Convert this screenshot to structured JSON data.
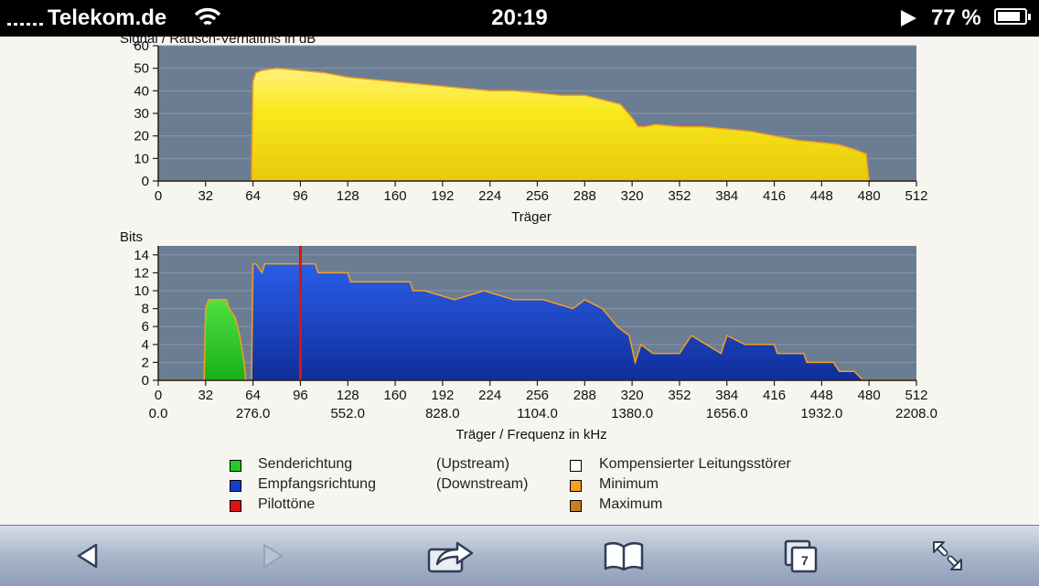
{
  "status_bar": {
    "carrier": "Telekom.de",
    "time": "20:19",
    "battery": "77 %"
  },
  "snr_chart": {
    "title": "Signal / Rausch-Verhältnis in dB",
    "xlabel": "Träger",
    "x_ticks": [
      "0",
      "32",
      "64",
      "96",
      "128",
      "160",
      "192",
      "224",
      "256",
      "288",
      "320",
      "352",
      "384",
      "416",
      "448",
      "480",
      "512"
    ],
    "y_ticks": [
      "0",
      "10",
      "20",
      "30",
      "40",
      "50",
      "60"
    ]
  },
  "bits_chart": {
    "ylabel": "Bits",
    "xlabel": "Träger / Frequenz in kHz",
    "x_ticks": [
      "0",
      "32",
      "64",
      "96",
      "128",
      "160",
      "192",
      "224",
      "256",
      "288",
      "320",
      "352",
      "384",
      "416",
      "448",
      "480",
      "512"
    ],
    "freq_ticks": [
      "0.0",
      "276.0",
      "552.0",
      "828.0",
      "1104.0",
      "1380.0",
      "1656.0",
      "1932.0",
      "2208.0"
    ],
    "y_ticks": [
      "0",
      "2",
      "4",
      "6",
      "8",
      "10",
      "12",
      "14"
    ]
  },
  "legend": {
    "upstream": "Senderichtung",
    "upstream_note": "(Upstream)",
    "downstream": "Empfangsrichtung",
    "downstream_note": "(Downstream)",
    "pilot": "Pilottöne",
    "compensated": "Kompensierter Leitungsstörer",
    "minimum": "Minimum",
    "maximum": "Maximum"
  },
  "colors": {
    "upstream": "#22cc22",
    "downstream": "#1040c8",
    "pilot": "#e01010",
    "compensated": "#ffffff",
    "minimum": "#f5a020",
    "maximum": "#c8801c",
    "snr_fill": "#f8e81a",
    "plot_bg": "#6b7d92"
  },
  "tabs_count": "7",
  "chart_data": [
    {
      "type": "area",
      "title": "Signal / Rausch-Verhältnis in dB",
      "xlabel": "Träger",
      "ylabel": "",
      "xlim": [
        0,
        512
      ],
      "ylim": [
        0,
        60
      ],
      "series": [
        {
          "x": [
            0,
            63,
            64,
            66,
            70,
            80,
            96,
            112,
            128,
            144,
            160,
            176,
            192,
            208,
            224,
            240,
            256,
            272,
            288,
            300,
            312,
            320,
            324,
            328,
            336,
            352,
            368,
            384,
            400,
            416,
            432,
            448,
            460,
            470,
            478,
            480,
            512
          ],
          "y": [
            0,
            0,
            44,
            48,
            49,
            50,
            49,
            48,
            46,
            45,
            44,
            43,
            42,
            41,
            40,
            40,
            39,
            38,
            38,
            36,
            34,
            28,
            24,
            24,
            25,
            24,
            24,
            23,
            22,
            20,
            18,
            17,
            16,
            14,
            12,
            0,
            0
          ]
        }
      ]
    },
    {
      "type": "area",
      "title": "",
      "xlabel": "Träger / Frequenz in kHz",
      "ylabel": "Bits",
      "xlim": [
        0,
        512
      ],
      "ylim": [
        0,
        15
      ],
      "series": [
        {
          "name": "Senderichtung",
          "x": [
            0,
            31,
            32,
            34,
            46,
            48,
            52,
            55,
            58,
            59,
            60,
            512
          ],
          "y": [
            0,
            0,
            8,
            9,
            9,
            8,
            7,
            5,
            2,
            0,
            0,
            0
          ]
        },
        {
          "name": "Empfangsrichtung",
          "x": [
            0,
            63,
            64,
            66,
            70,
            72,
            106,
            108,
            128,
            130,
            170,
            172,
            180,
            200,
            220,
            240,
            260,
            280,
            288,
            300,
            310,
            318,
            322,
            326,
            334,
            340,
            352,
            360,
            370,
            380,
            384,
            396,
            400,
            414,
            416,
            418,
            430,
            436,
            438,
            440,
            444,
            448,
            452,
            456,
            460,
            464,
            470,
            476,
            478,
            512
          ],
          "y": [
            0,
            0,
            13,
            13,
            12,
            13,
            13,
            12,
            12,
            11,
            11,
            10,
            10,
            9,
            10,
            9,
            9,
            8,
            9,
            8,
            6,
            5,
            2,
            4,
            3,
            3,
            3,
            5,
            4,
            3,
            5,
            4,
            4,
            4,
            4,
            3,
            3,
            3,
            2,
            2,
            2,
            2,
            2,
            2,
            1,
            1,
            1,
            0,
            0,
            0
          ]
        },
        {
          "name": "Pilottöne",
          "x": [
            96
          ],
          "y": [
            13
          ]
        }
      ]
    }
  ]
}
